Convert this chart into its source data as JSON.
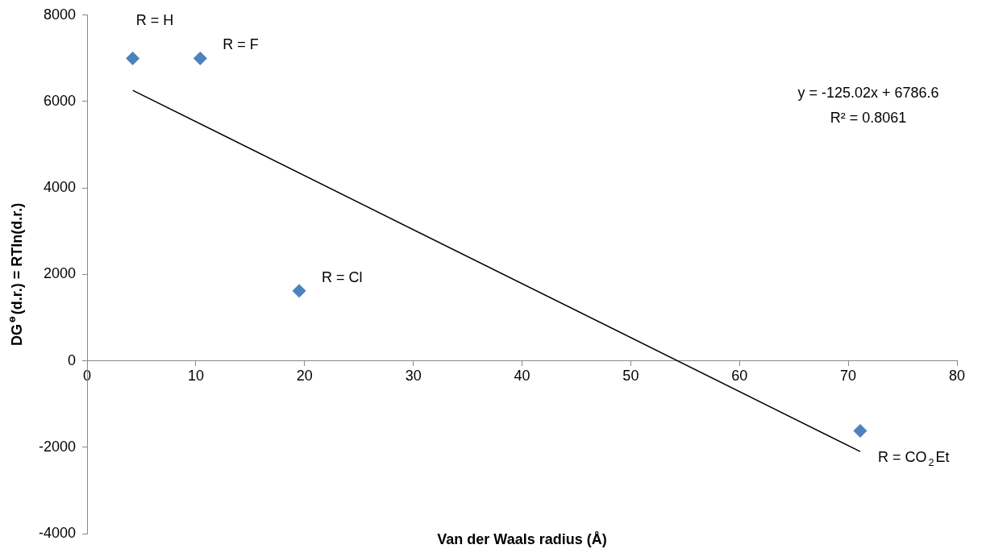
{
  "chart_data": {
    "type": "scatter",
    "xlabel": "Van der Waals radius (Å)",
    "ylabel": "DG$^{ө}$(d.r.) = RTln(d.r.)",
    "xlim": [
      0,
      80
    ],
    "xticks": [
      0,
      10,
      20,
      30,
      40,
      50,
      60,
      70,
      80
    ],
    "ylim": [
      -4000,
      8000
    ],
    "yticks": [
      -4000,
      -2000,
      0,
      2000,
      4000,
      6000,
      8000
    ],
    "grid": false,
    "legend": false,
    "marker": "diamond",
    "series": [
      {
        "color": "#4f81bd",
        "x": [
          4.2,
          10.4,
          19.5,
          71.1
        ],
        "values": [
          7000,
          7000,
          1620,
          -1620
        ]
      },
      {
        "type": "line",
        "color": "#000000",
        "x": [
          4.2,
          71.1
        ],
        "values": [
          6260,
          -2100
        ],
        "marker": "none"
      }
    ],
    "annotations": [
      {
        "text": "R = H",
        "x": 4.2,
        "y": 7000
      },
      {
        "text": "R = F",
        "x": 10.4,
        "y": 7000
      },
      {
        "text": "R = Cl",
        "x": 19.5,
        "y": 1620
      },
      {
        "text": "R = CO$_{2}$Et",
        "x": 71.1,
        "y": -1620
      },
      "y = -125.02x + 6786.6",
      "R² = 0.8061"
    ]
  }
}
